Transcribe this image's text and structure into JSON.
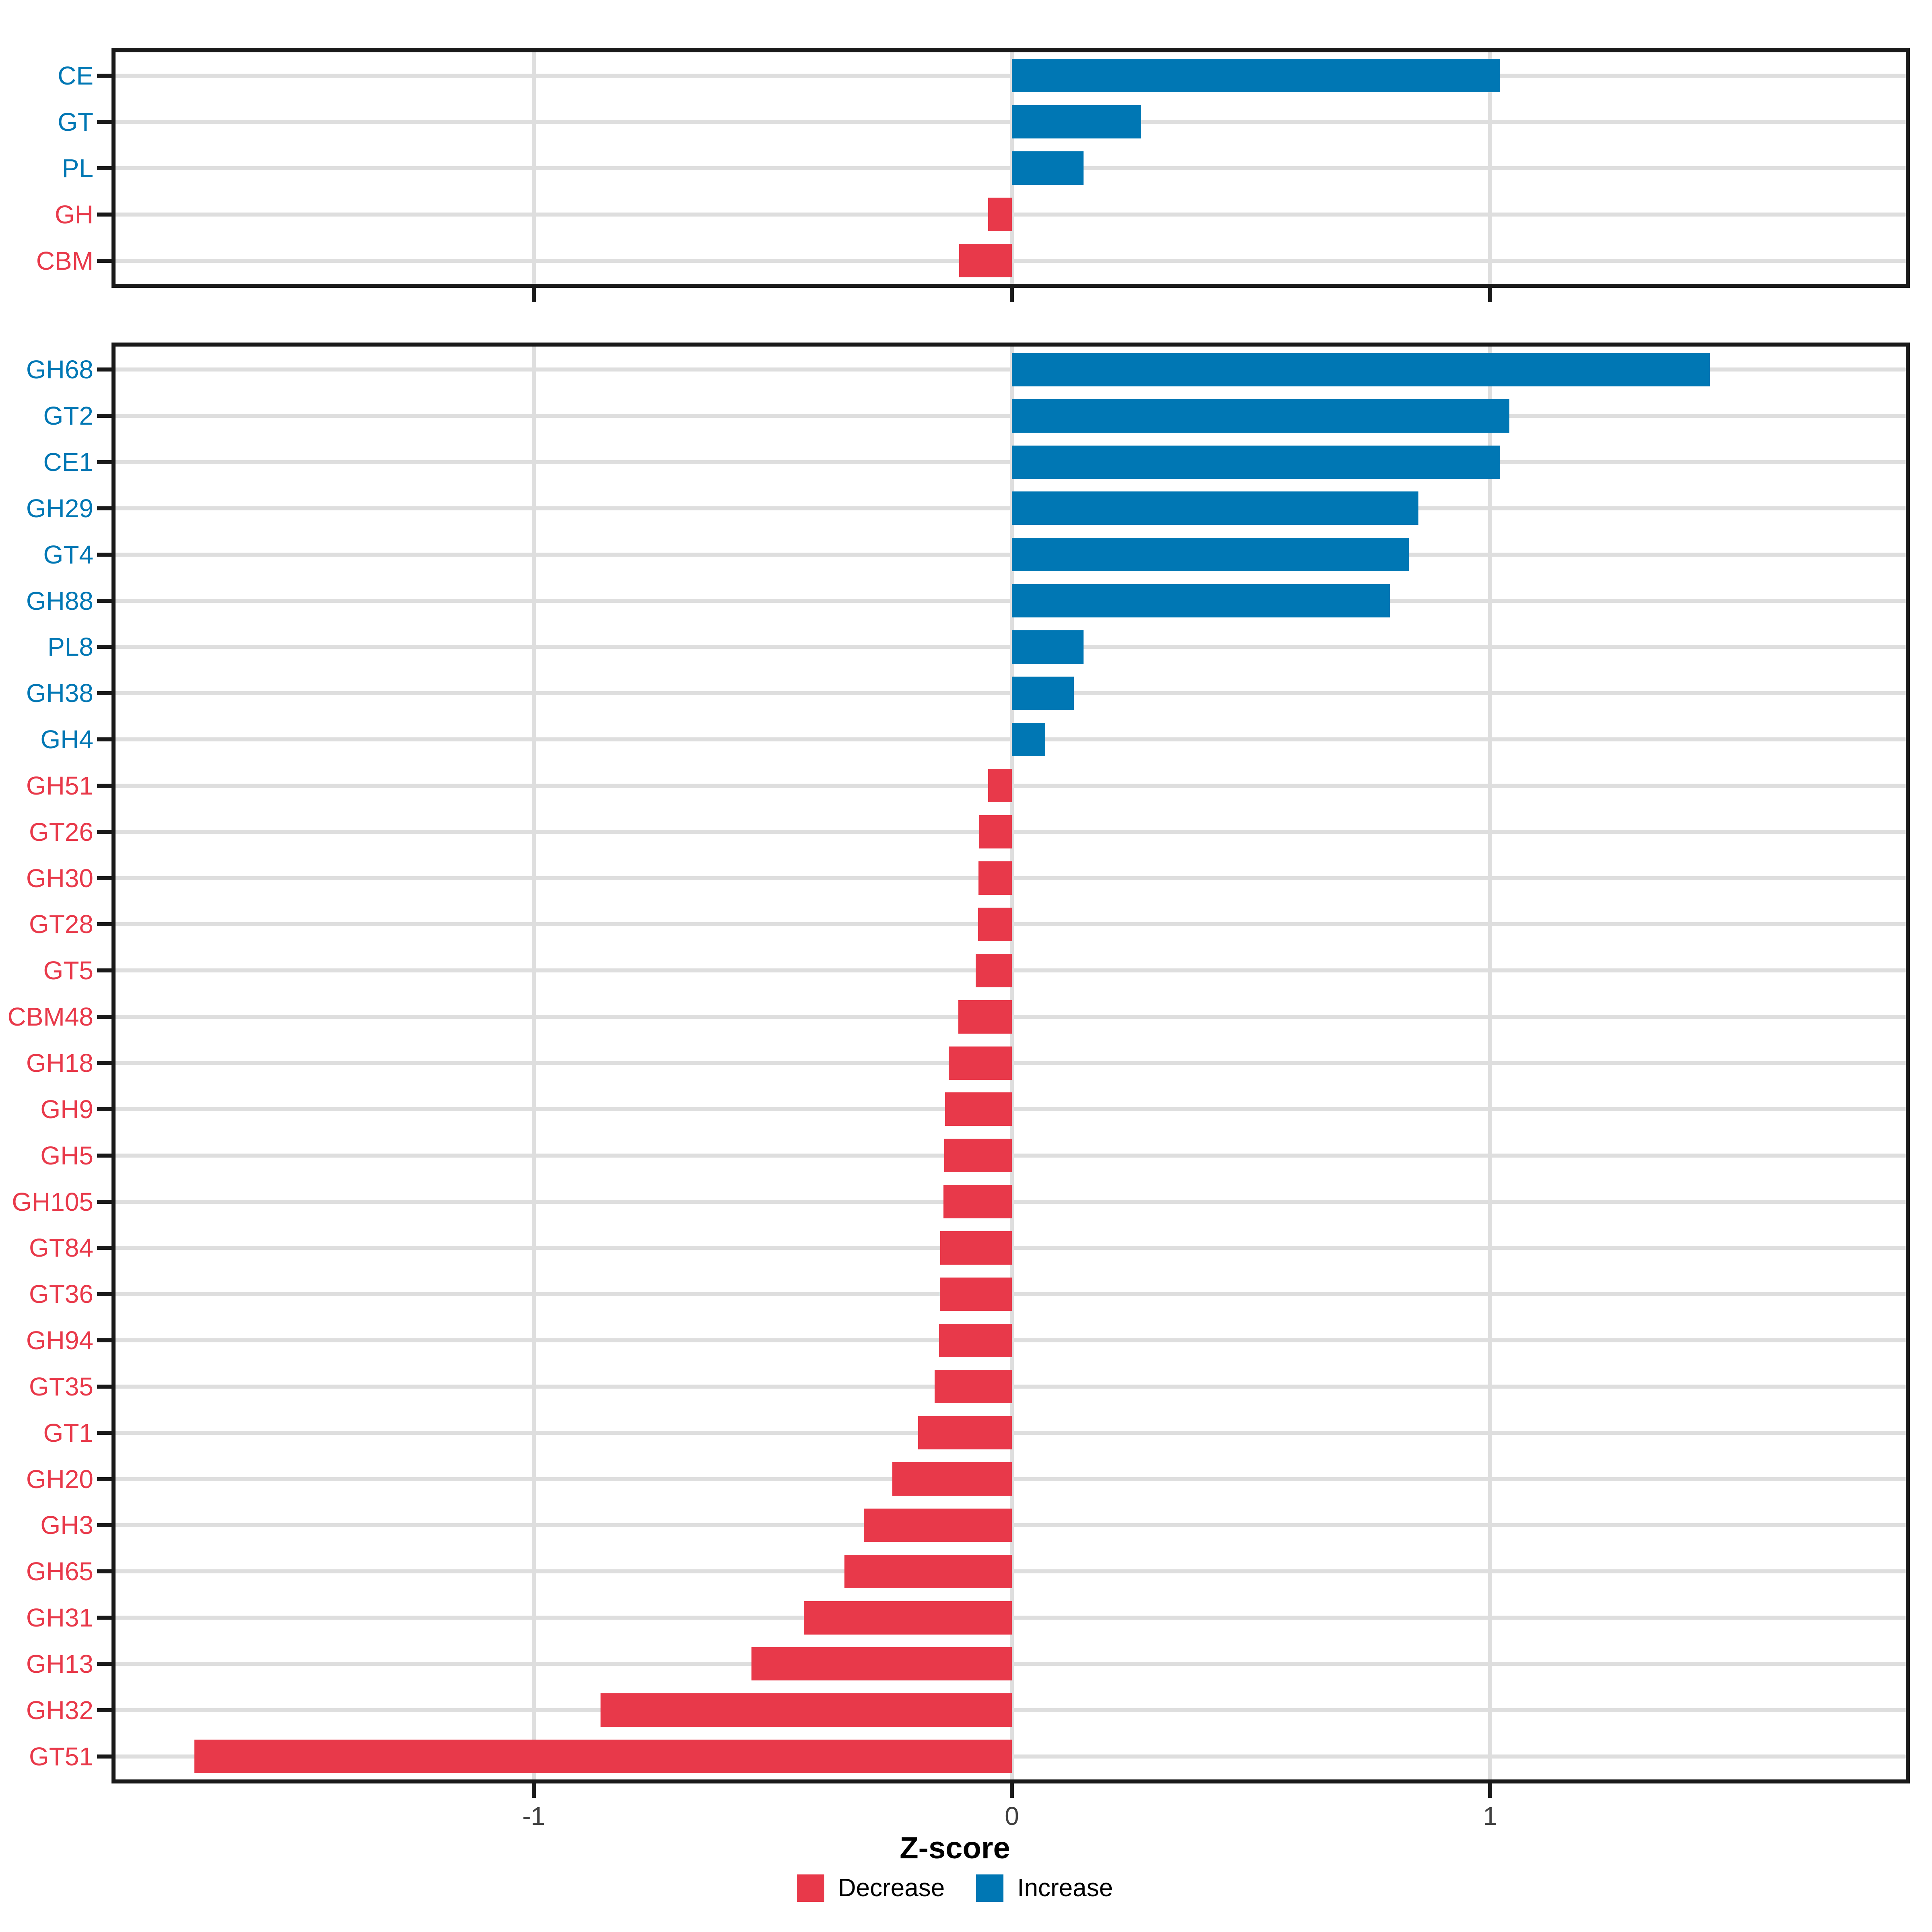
{
  "chart_data": [
    {
      "type": "bar",
      "orientation": "horizontal",
      "panel": "cazy_classes",
      "title": "",
      "categories": [
        "CE",
        "GT",
        "PL",
        "GH",
        "CBM"
      ],
      "values": [
        1.02,
        0.27,
        0.15,
        -0.05,
        -0.11
      ],
      "series_rule": "positive = Increase (blue), negative = Decrease (red)",
      "xlim": [
        -1.88,
        1.88
      ],
      "grid": true,
      "legend_position": "none"
    },
    {
      "type": "bar",
      "orientation": "horizontal",
      "panel": "cazy_families",
      "title": "",
      "categories": [
        "GH68",
        "GT2",
        "CE1",
        "GH29",
        "GT4",
        "GH88",
        "PL8",
        "GH38",
        "GH4",
        "GH51",
        "GT26",
        "GH30",
        "GT28",
        "GT5",
        "CBM48",
        "GH18",
        "GH9",
        "GH5",
        "GH105",
        "GT84",
        "GT36",
        "GH94",
        "GT35",
        "GT1",
        "GH20",
        "GH3",
        "GH65",
        "GH31",
        "GH13",
        "GH32",
        "GT51"
      ],
      "values": [
        1.46,
        1.04,
        1.02,
        0.85,
        0.83,
        0.79,
        0.15,
        0.13,
        0.07,
        -0.05,
        -0.068,
        -0.07,
        -0.071,
        -0.076,
        -0.112,
        -0.132,
        -0.14,
        -0.141,
        -0.143,
        -0.15,
        -0.151,
        -0.152,
        -0.162,
        -0.196,
        -0.25,
        -0.31,
        -0.35,
        -0.435,
        -0.545,
        -0.86,
        -1.71
      ],
      "series_rule": "positive = Increase (blue), negative = Decrease (red)",
      "xlim": [
        -1.88,
        1.88
      ],
      "grid": true,
      "legend_position": "bottom"
    }
  ],
  "axis": {
    "title": "Z-score",
    "ticks": [
      {
        "value": -1,
        "label": "-1"
      },
      {
        "value": 0,
        "label": "0"
      },
      {
        "value": 1,
        "label": "1"
      }
    ]
  },
  "legend": {
    "items": [
      {
        "label": "Decrease",
        "color_key": "decrease"
      },
      {
        "label": "Increase",
        "color_key": "increase"
      }
    ]
  },
  "colors": {
    "decrease": "#E8394A",
    "increase": "#0077B4",
    "grid": "#DEDEDE",
    "axis": "#1A1A1A",
    "tick_label": "#404040"
  }
}
